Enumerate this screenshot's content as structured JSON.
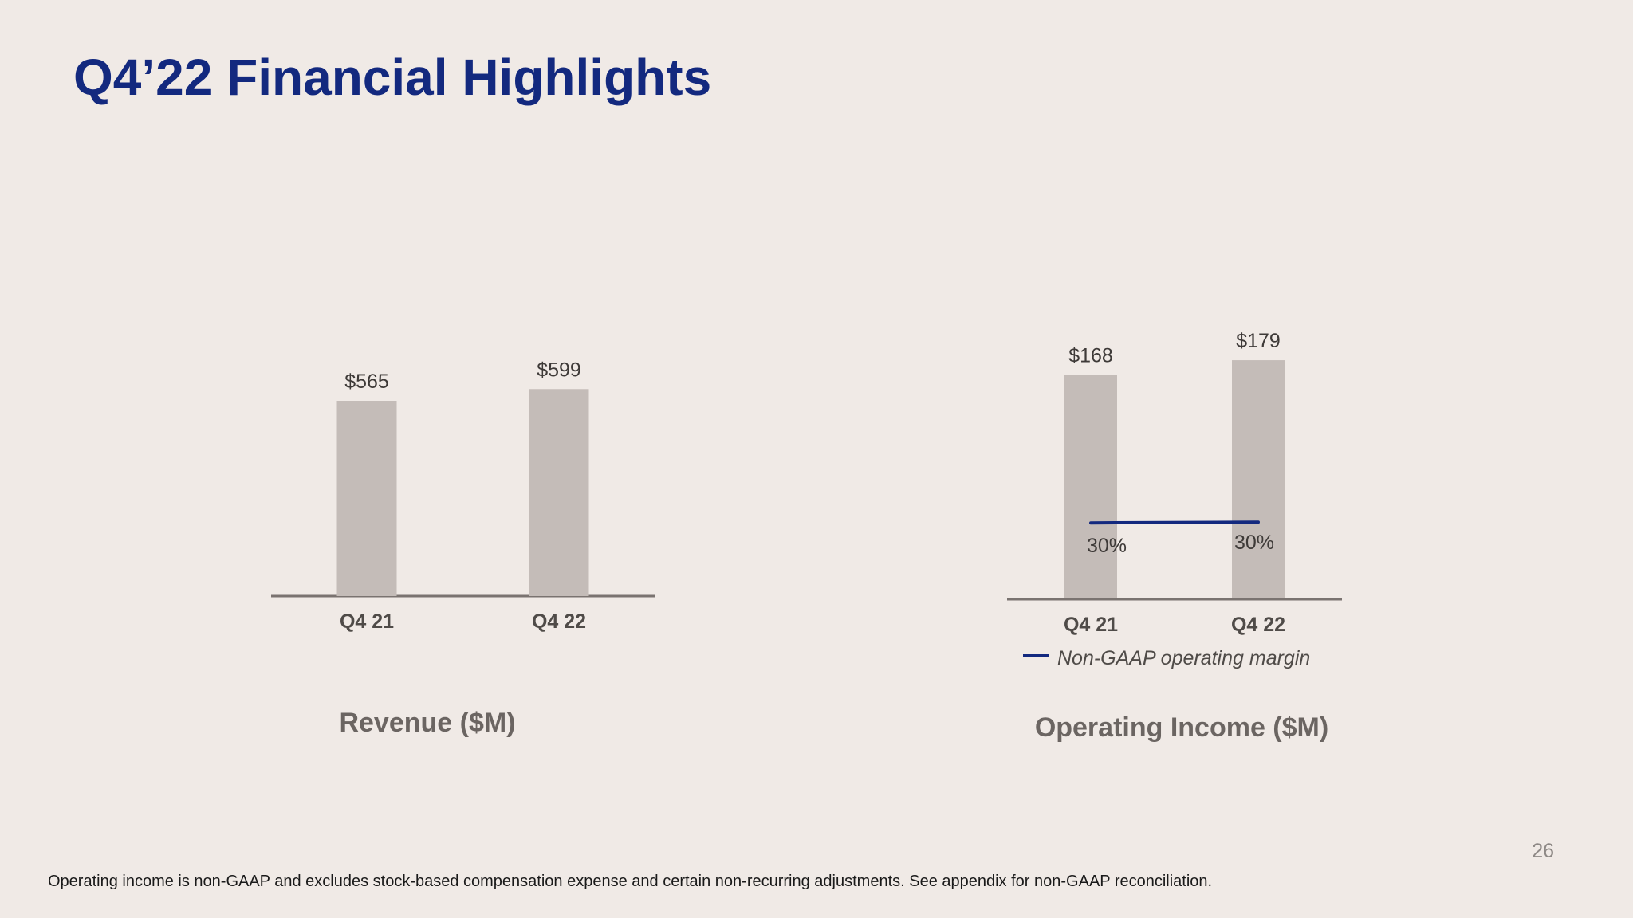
{
  "slide": {
    "title": "Q4’22 Financial Highlights",
    "page_number": "26",
    "footnote": "Operating income is non-GAAP and excludes stock-based compensation expense and certain non-recurring adjustments. See appendix for non-GAAP reconciliation."
  },
  "colors": {
    "title": "#13297F",
    "bar": "#C4BCB8",
    "axis": "#7A7370",
    "margin_line": "#13297F",
    "background": "#F0EAE6"
  },
  "chart_data": [
    {
      "type": "bar",
      "title": "Revenue ($M)",
      "categories": [
        "Q4 21",
        "Q4 22"
      ],
      "values": [
        565,
        599
      ],
      "value_labels": [
        "$565",
        "$599"
      ]
    },
    {
      "type": "bar",
      "title": "Operating Income ($M)",
      "categories": [
        "Q4 21",
        "Q4 22"
      ],
      "values": [
        168,
        179
      ],
      "value_labels": [
        "$168",
        "$179"
      ],
      "line_series": {
        "name": "Non-GAAP operating margin",
        "values": [
          30,
          30
        ],
        "value_labels": [
          "30%",
          "30%"
        ]
      },
      "legend": "bottom"
    }
  ]
}
